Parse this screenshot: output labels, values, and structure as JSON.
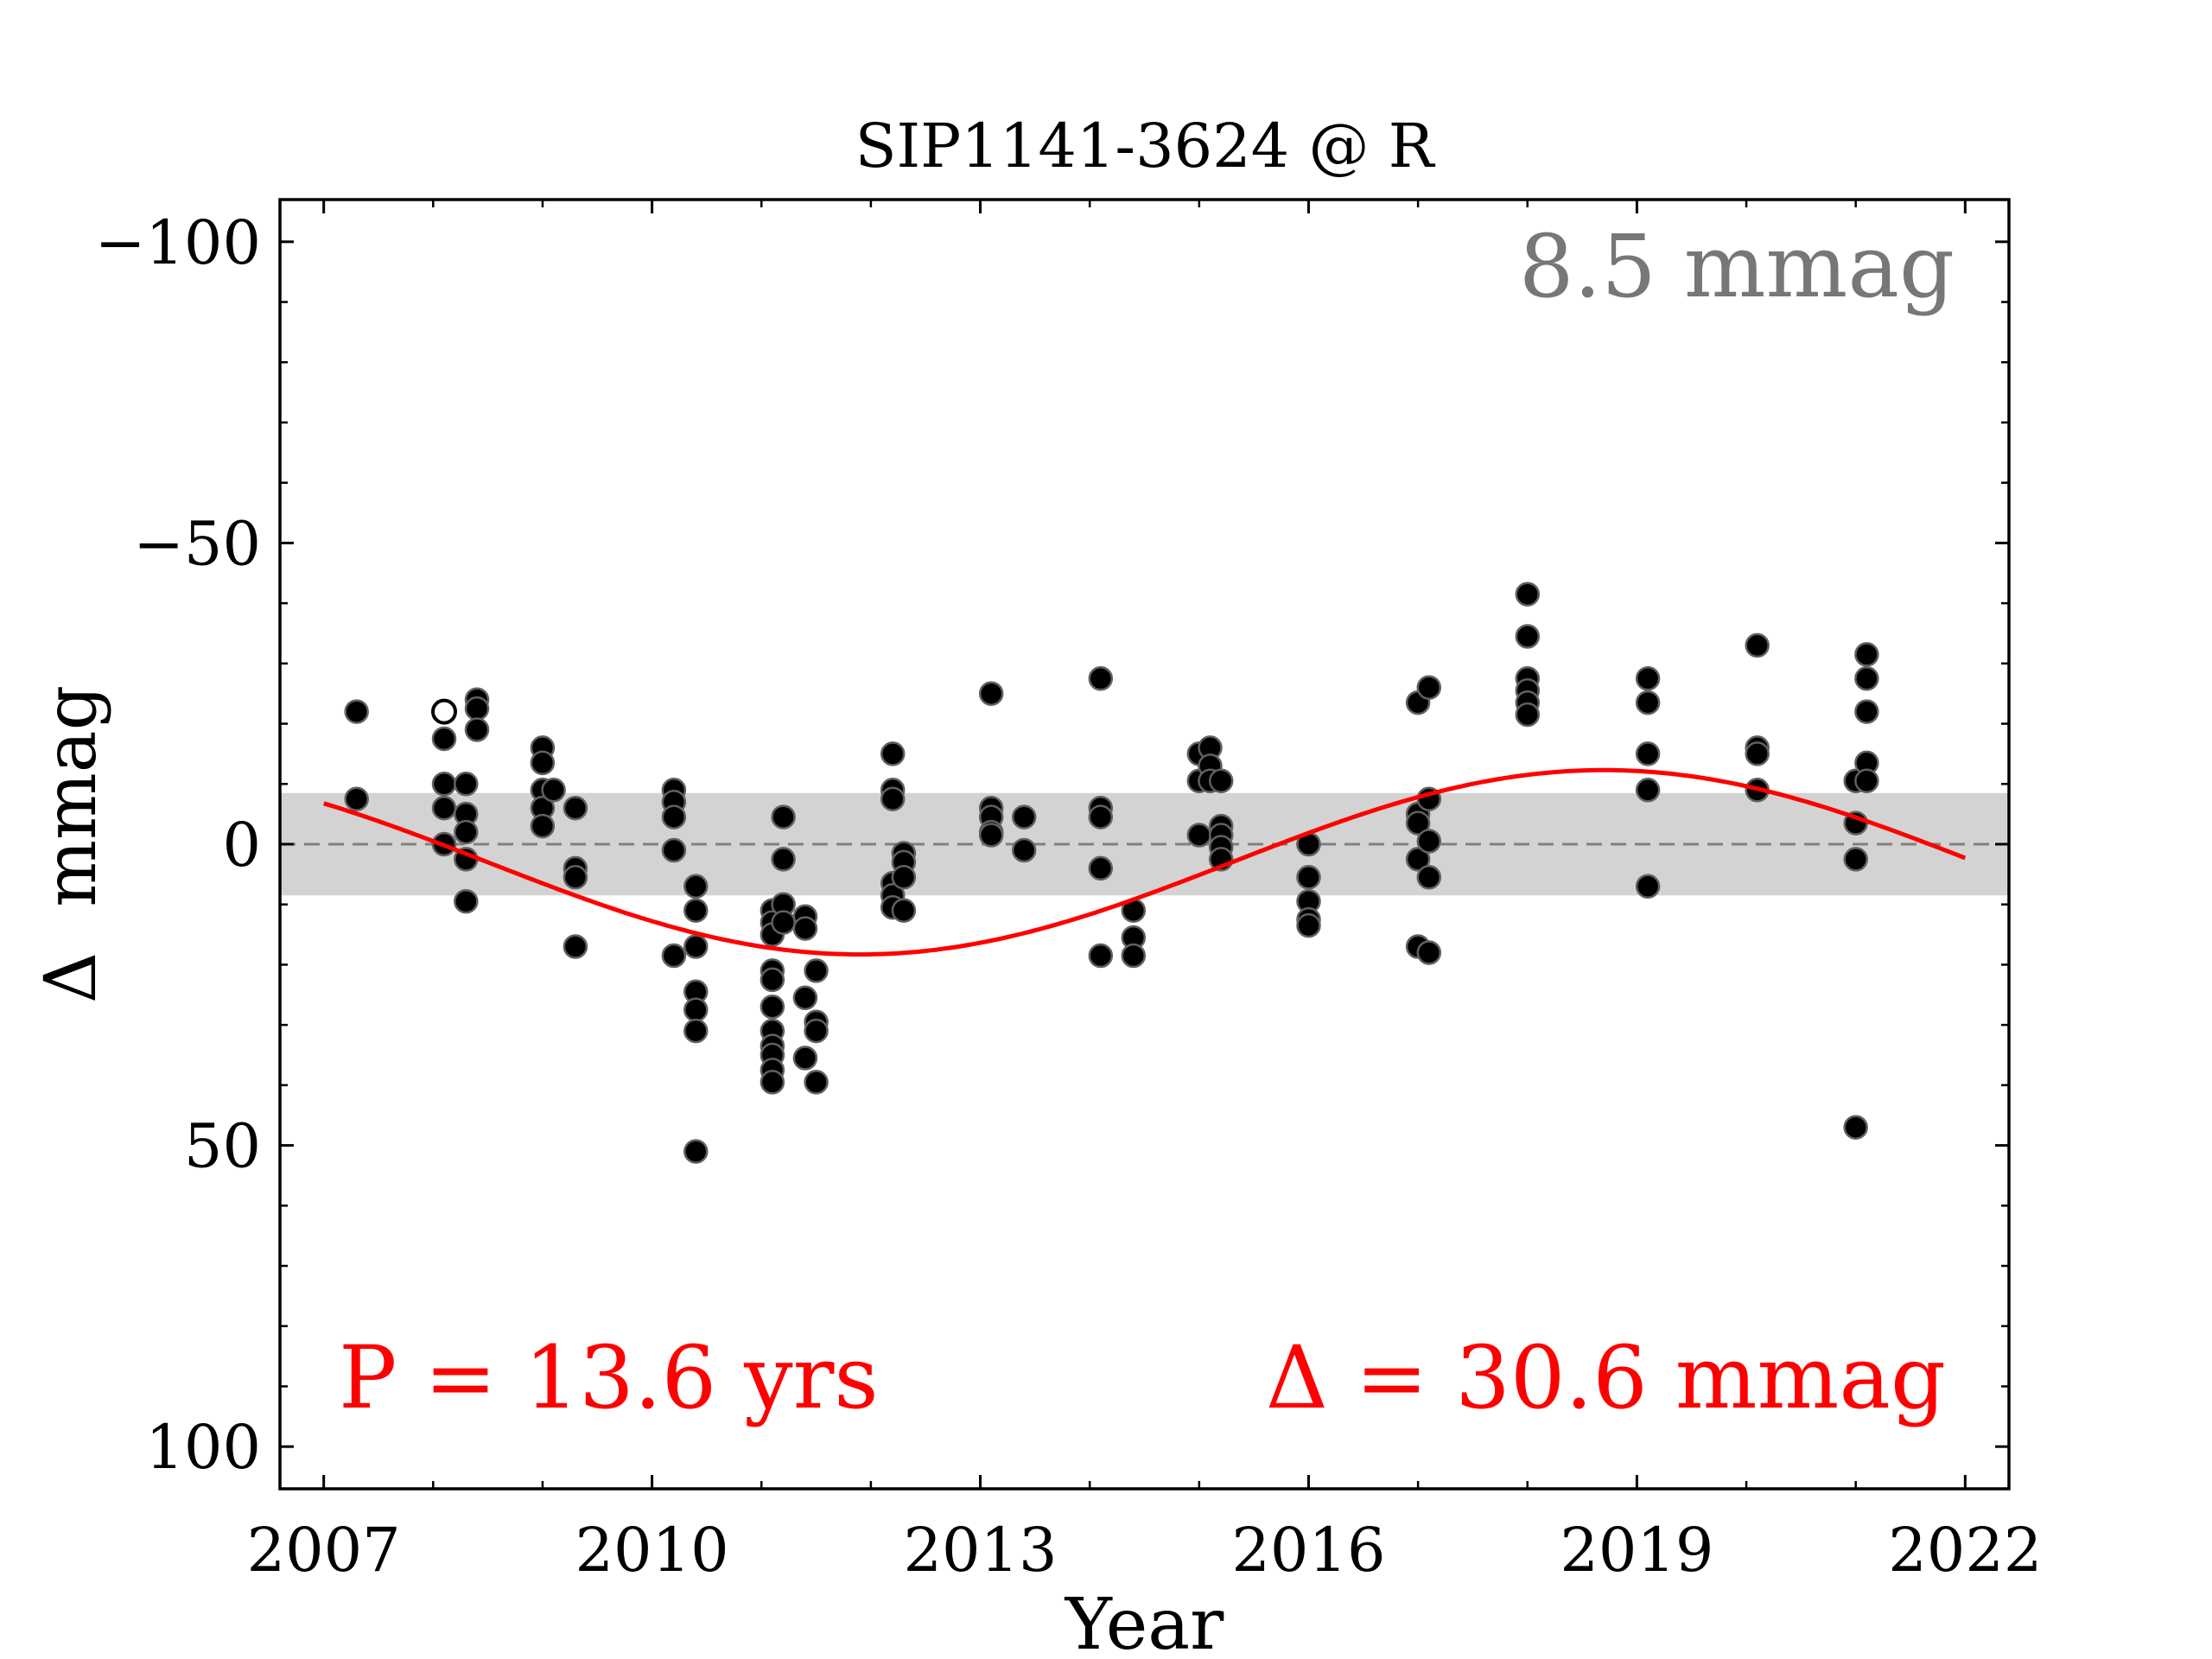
{
  "chart_data": {
    "type": "scatter",
    "title": "SIP1141-3624 @ R",
    "xlabel": "Year",
    "ylabel": "Δ  mmag",
    "xlim": [
      2006.6,
      2022.4
    ],
    "ylim": [
      107,
      -107
    ],
    "y_inverted": true,
    "grid": false,
    "xticks": [
      2007,
      2010,
      2013,
      2016,
      2019,
      2022
    ],
    "yticks": [
      -100,
      -50,
      0,
      50,
      100
    ],
    "xtick_labels": [
      "2007",
      "2010",
      "2013",
      "2016",
      "2019",
      "2022"
    ],
    "ytick_labels": [
      "−100",
      "−50",
      "0",
      "50",
      "100"
    ],
    "band": {
      "half_width": 8.5,
      "color": "#d3d3d3",
      "label": "8.5 mmag",
      "label_color": "#777777"
    },
    "fit": {
      "period_label": "P = 13.6 yrs",
      "amplitude_label": "Δ = 30.6 mmag",
      "color": "#ff0000",
      "period": 13.6,
      "amplitude": 30.6,
      "offset": 3,
      "phase_min_year": 2011.9,
      "x_range": [
        2007,
        2022
      ]
    },
    "series": [
      {
        "marker": "filled",
        "color": "#000000",
        "points": [
          [
            2007.3,
            -22
          ],
          [
            2007.3,
            -7.5
          ],
          [
            2008.1,
            -17.5
          ],
          [
            2008.1,
            -10
          ],
          [
            2008.1,
            -6
          ],
          [
            2008.1,
            0
          ],
          [
            2008.3,
            -10
          ],
          [
            2008.3,
            -5
          ],
          [
            2008.3,
            -2
          ],
          [
            2008.3,
            2.5
          ],
          [
            2008.3,
            9.5
          ],
          [
            2008.4,
            -24
          ],
          [
            2008.4,
            -22.5
          ],
          [
            2008.4,
            -19
          ],
          [
            2009.0,
            -16
          ],
          [
            2009.0,
            -13.5
          ],
          [
            2009.0,
            -9
          ],
          [
            2009.0,
            -6
          ],
          [
            2009.0,
            -3
          ],
          [
            2009.1,
            -9
          ],
          [
            2009.3,
            -6
          ],
          [
            2009.3,
            4
          ],
          [
            2009.3,
            5.5
          ],
          [
            2009.3,
            17
          ],
          [
            2010.2,
            -9
          ],
          [
            2010.2,
            -7
          ],
          [
            2010.2,
            -4.5
          ],
          [
            2010.2,
            1
          ],
          [
            2010.2,
            18.5
          ],
          [
            2010.4,
            7
          ],
          [
            2010.4,
            11
          ],
          [
            2010.4,
            17
          ],
          [
            2010.4,
            24.5
          ],
          [
            2010.4,
            27.5
          ],
          [
            2010.4,
            31
          ],
          [
            2010.4,
            51
          ],
          [
            2011.1,
            11
          ],
          [
            2011.1,
            13
          ],
          [
            2011.1,
            15
          ],
          [
            2011.1,
            21
          ],
          [
            2011.1,
            22.5
          ],
          [
            2011.1,
            27
          ],
          [
            2011.1,
            31
          ],
          [
            2011.1,
            33.5
          ],
          [
            2011.1,
            35
          ],
          [
            2011.1,
            37.5
          ],
          [
            2011.1,
            39.5
          ],
          [
            2011.2,
            -4.5
          ],
          [
            2011.2,
            2.5
          ],
          [
            2011.2,
            10
          ],
          [
            2011.2,
            13
          ],
          [
            2011.4,
            12
          ],
          [
            2011.4,
            14
          ],
          [
            2011.4,
            25.5
          ],
          [
            2011.4,
            35.5
          ],
          [
            2011.5,
            21
          ],
          [
            2011.5,
            29.5
          ],
          [
            2011.5,
            31
          ],
          [
            2011.5,
            39.5
          ],
          [
            2012.2,
            -15
          ],
          [
            2012.2,
            -9
          ],
          [
            2012.2,
            -7.5
          ],
          [
            2012.2,
            6.5
          ],
          [
            2012.2,
            8.5
          ],
          [
            2012.2,
            10.5
          ],
          [
            2012.3,
            1.5
          ],
          [
            2012.3,
            3
          ],
          [
            2012.3,
            5.5
          ],
          [
            2012.3,
            11
          ],
          [
            2013.1,
            -25
          ],
          [
            2013.1,
            -6
          ],
          [
            2013.1,
            -4.5
          ],
          [
            2013.1,
            -2
          ],
          [
            2013.1,
            -1.5
          ],
          [
            2013.4,
            -4.5
          ],
          [
            2013.4,
            1
          ],
          [
            2014.1,
            -27.5
          ],
          [
            2014.1,
            -6
          ],
          [
            2014.1,
            -4.5
          ],
          [
            2014.1,
            4
          ],
          [
            2014.1,
            18.5
          ],
          [
            2014.4,
            11
          ],
          [
            2014.4,
            15.5
          ],
          [
            2014.4,
            18.5
          ],
          [
            2015.0,
            -15
          ],
          [
            2015.0,
            -10.5
          ],
          [
            2015.0,
            -1.5
          ],
          [
            2015.1,
            -16
          ],
          [
            2015.1,
            -13
          ],
          [
            2015.1,
            -10.5
          ],
          [
            2015.2,
            -10.5
          ],
          [
            2015.2,
            -3
          ],
          [
            2015.2,
            -1.5
          ],
          [
            2015.2,
            0.5
          ],
          [
            2015.2,
            2.5
          ],
          [
            2016.0,
            0
          ],
          [
            2016.0,
            5.5
          ],
          [
            2016.0,
            9.5
          ],
          [
            2016.0,
            12.5
          ],
          [
            2016.0,
            13.5
          ],
          [
            2017.0,
            -23.5
          ],
          [
            2017.0,
            -5
          ],
          [
            2017.0,
            -3.5
          ],
          [
            2017.0,
            2.5
          ],
          [
            2017.0,
            17
          ],
          [
            2017.1,
            -26
          ],
          [
            2017.1,
            -7.5
          ],
          [
            2017.1,
            -0.5
          ],
          [
            2017.1,
            5.5
          ],
          [
            2017.1,
            18
          ],
          [
            2018.0,
            -41.5
          ],
          [
            2018.0,
            -34.5
          ],
          [
            2018.0,
            -27.5
          ],
          [
            2018.0,
            -25.5
          ],
          [
            2018.0,
            -23.5
          ],
          [
            2018.0,
            -21.5
          ],
          [
            2019.1,
            -27.5
          ],
          [
            2019.1,
            -23.5
          ],
          [
            2019.1,
            -15
          ],
          [
            2019.1,
            -9
          ],
          [
            2019.1,
            7
          ],
          [
            2020.1,
            -33
          ],
          [
            2020.1,
            -16
          ],
          [
            2020.1,
            -15
          ],
          [
            2020.1,
            -9
          ],
          [
            2021.0,
            -10.5
          ],
          [
            2021.0,
            -3.5
          ],
          [
            2021.0,
            2.5
          ],
          [
            2021.0,
            47
          ],
          [
            2021.1,
            -31.5
          ],
          [
            2021.1,
            -27.5
          ],
          [
            2021.1,
            -22
          ],
          [
            2021.1,
            -13.5
          ],
          [
            2021.1,
            -10.5
          ]
        ]
      },
      {
        "marker": "open",
        "color": "#000000",
        "points": [
          [
            2008.1,
            -22
          ]
        ]
      }
    ]
  }
}
